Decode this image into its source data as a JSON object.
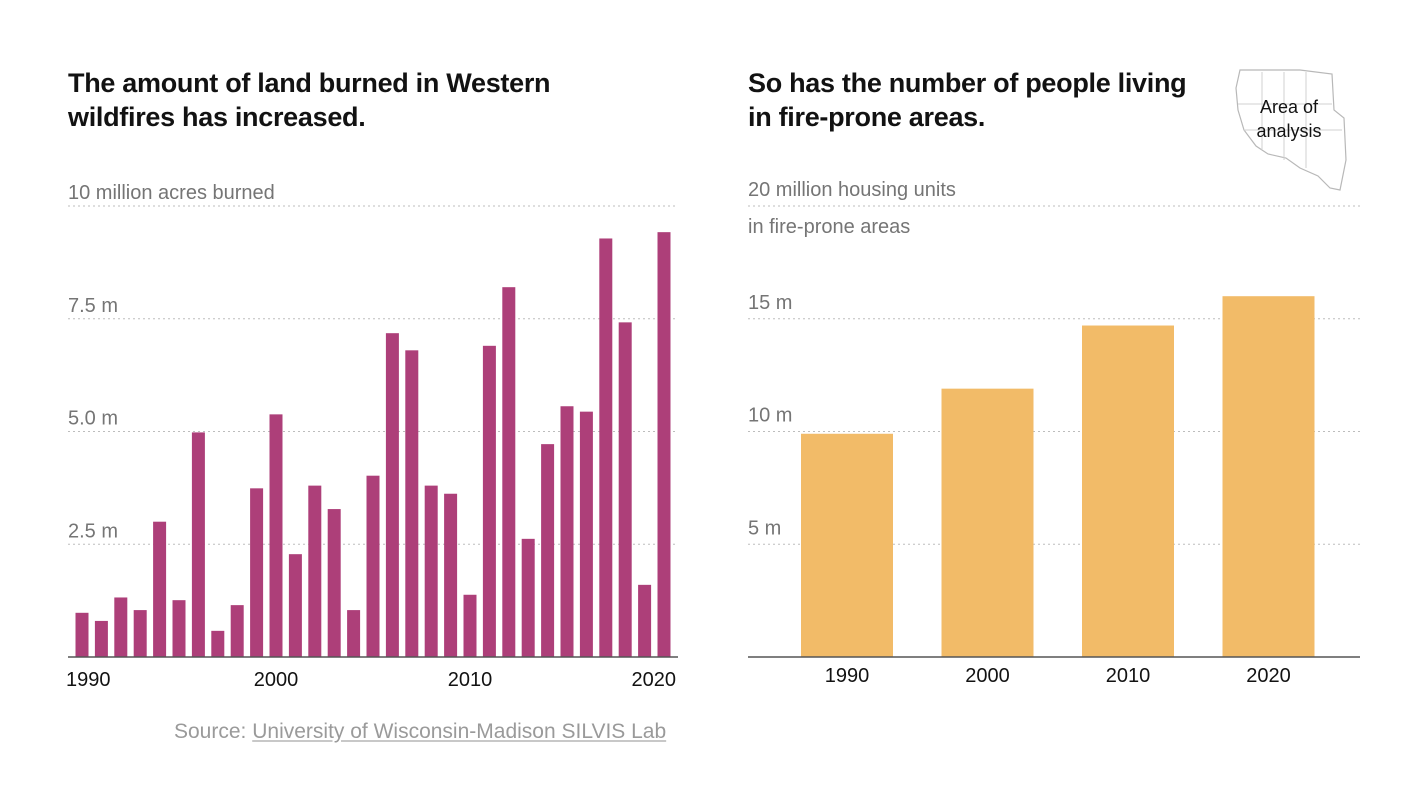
{
  "colors": {
    "burned": "#ad3f79",
    "housing": "#f2bb68"
  },
  "left": {
    "title": "The amount of land burned in Western wildfires has increased."
  },
  "right": {
    "title": "So has the number of people living in fire-prone areas.",
    "map": {
      "label_line1": "Area of",
      "label_line2": "analysis"
    }
  },
  "source": {
    "prefix": "Source: ",
    "link_text": "University of Wisconsin-Madison SILVIS Lab"
  },
  "chart_data": [
    {
      "type": "bar",
      "title": "The amount of land burned in Western wildfires has increased.",
      "ylabel": "acres burned",
      "y_unit": "million acres",
      "ylim": [
        0,
        10
      ],
      "yticks": [
        {
          "value": 2.5,
          "label": "2.5 m"
        },
        {
          "value": 5,
          "label": "5.0 m"
        },
        {
          "value": 7.5,
          "label": "7.5 m"
        },
        {
          "value": 10,
          "label": "10 million acres burned"
        }
      ],
      "xtick_labels": [
        "1990",
        "2000",
        "2010",
        "2020"
      ],
      "categories": [
        "1990",
        "1991",
        "1992",
        "1993",
        "1994",
        "1995",
        "1996",
        "1997",
        "1998",
        "1999",
        "2000",
        "2001",
        "2002",
        "2003",
        "2004",
        "2005",
        "2006",
        "2007",
        "2008",
        "2009",
        "2010",
        "2011",
        "2012",
        "2013",
        "2014",
        "2015",
        "2016",
        "2017",
        "2018",
        "2019",
        "2020"
      ],
      "values": [
        0.98,
        0.8,
        1.32,
        1.04,
        3.0,
        1.26,
        4.98,
        0.58,
        1.15,
        3.74,
        5.38,
        2.28,
        3.8,
        3.28,
        1.04,
        4.02,
        7.18,
        6.8,
        3.8,
        3.62,
        1.38,
        6.9,
        8.2,
        2.62,
        4.72,
        5.56,
        5.44,
        9.28,
        7.42,
        1.6,
        9.42
      ]
    },
    {
      "type": "bar",
      "title": "So has the number of people living in fire-prone areas.",
      "ylabel": "housing units in fire-prone areas",
      "y_unit": "million housing units",
      "ylim": [
        0,
        20
      ],
      "yticks": [
        {
          "value": 5,
          "label": "5 m"
        },
        {
          "value": 10,
          "label": "10 m"
        },
        {
          "value": 15,
          "label": "15 m"
        },
        {
          "value": 20,
          "label": "20 million housing units"
        }
      ],
      "y_top_sublabel": "in fire-prone areas",
      "categories": [
        "1990",
        "2000",
        "2010",
        "2020"
      ],
      "values": [
        9.9,
        11.9,
        14.7,
        16.0
      ]
    }
  ]
}
